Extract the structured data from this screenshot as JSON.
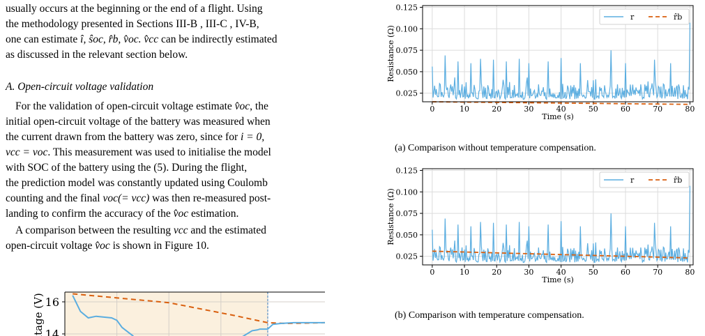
{
  "text": {
    "para1_l1": "usually occurs at the beginning or the end of a flight. Using",
    "para1_l2": "the methodology presented in Sections III-B , III-C , IV-B,",
    "para1_l3a": "one can estimate ",
    "para1_l3_vars": "î, ŝoc, r̂b, v̂oc. v̂cc",
    "para1_l3b": " can be indirectly estimated",
    "para1_l4": "as discussed in the relevant section below.",
    "section_heading": "A. Open-circuit voltage validation",
    "para2_l1a": "For the validation of open-circuit voltage estimate ",
    "para2_l1v": "v̂oc",
    "para2_l1b": ", the",
    "para2_l2": "initial open-circuit voltage of the battery was measured when",
    "para2_l3a": "the current drawn from the battery was zero, since for ",
    "para2_l3v": "i = 0,",
    "para2_l4a": "vcc = voc",
    "para2_l4b": ". This measurement was used to initialise the model",
    "para2_l5": "with SOC of the battery using the (5). During the flight,",
    "para2_l6": "the prediction model was constantly updated using Coulomb",
    "para2_l7a": "counting and the final ",
    "para2_l7v": "voc(= vcc)",
    "para2_l7b": " was then re-measured post-",
    "para2_l8a": "landing to confirm the accuracy of the ",
    "para2_l8v": "v̂oc",
    "para2_l8b": " estimation.",
    "para3_l1a": "A comparison between the resulting ",
    "para3_l1v": "vcc",
    "para3_l1b": " and the estimated",
    "para3_l2a": "open-circuit voltage ",
    "para3_l2v": "v̂oc",
    "para3_l2b": " is shown in Figure 10."
  },
  "captions": {
    "a": "(a) Comparison without temperature compensation.",
    "b": "(b) Comparison with temperature compensation."
  },
  "chart_data": [
    {
      "id": "fig_a",
      "type": "line",
      "ylabel": "Resistance (Ω)",
      "xlabel": "Time (s)",
      "xlim": [
        -3,
        81
      ],
      "ylim": [
        0.015,
        0.127
      ],
      "xticks": [
        "0",
        "10",
        "20",
        "30",
        "40",
        "50",
        "60",
        "70",
        "80"
      ],
      "yticks": [
        "0.025",
        "0.050",
        "0.075",
        "0.100",
        "0.125"
      ],
      "legend": {
        "position": "top-right",
        "entries": [
          "r",
          "r̂b"
        ]
      },
      "grid": true,
      "series": [
        {
          "name": "r",
          "color": "#5aade0",
          "style": "solid",
          "seed": 7,
          "base": 0.026,
          "noise": 0.009,
          "spikes": [
            [
              0,
              0.056
            ],
            [
              4,
              0.069
            ],
            [
              8,
              0.062
            ],
            [
              12,
              0.06
            ],
            [
              15,
              0.065
            ],
            [
              19,
              0.064
            ],
            [
              23,
              0.062
            ],
            [
              27,
              0.065
            ],
            [
              30,
              0.06
            ],
            [
              36,
              0.062
            ],
            [
              40,
              0.066
            ],
            [
              46,
              0.06
            ],
            [
              55.5,
              0.075
            ],
            [
              60,
              0.06
            ],
            [
              69,
              0.064
            ],
            [
              74,
              0.06
            ],
            [
              80,
              0.107
            ]
          ]
        },
        {
          "name": "r̂b",
          "color": "#d95f0e",
          "style": "dashed",
          "points": [
            [
              0,
              0.015
            ],
            [
              80,
              0.012
            ]
          ]
        }
      ]
    },
    {
      "id": "fig_b",
      "type": "line",
      "ylabel": "Resistance (Ω)",
      "xlabel": "Time (s)",
      "xlim": [
        -3,
        81
      ],
      "ylim": [
        0.015,
        0.127
      ],
      "xticks": [
        "0",
        "10",
        "20",
        "30",
        "40",
        "50",
        "60",
        "70",
        "80"
      ],
      "yticks": [
        "0.025",
        "0.050",
        "0.075",
        "0.100",
        "0.125"
      ],
      "legend": {
        "position": "top-right",
        "entries": [
          "r",
          "r̂b"
        ]
      },
      "grid": true,
      "series": [
        {
          "name": "r",
          "color": "#5aade0",
          "style": "solid",
          "seed": 7,
          "base": 0.026,
          "noise": 0.009,
          "spikes": [
            [
              0,
              0.056
            ],
            [
              4,
              0.069
            ],
            [
              8,
              0.062
            ],
            [
              12,
              0.06
            ],
            [
              15,
              0.065
            ],
            [
              19,
              0.064
            ],
            [
              23,
              0.062
            ],
            [
              27,
              0.065
            ],
            [
              30,
              0.06
            ],
            [
              36,
              0.062
            ],
            [
              40,
              0.066
            ],
            [
              46,
              0.06
            ],
            [
              55.5,
              0.075
            ],
            [
              60,
              0.06
            ],
            [
              69,
              0.064
            ],
            [
              74,
              0.06
            ],
            [
              80,
              0.107
            ]
          ]
        },
        {
          "name": "r̂b",
          "color": "#d95f0e",
          "style": "dashed",
          "points": [
            [
              0,
              0.031
            ],
            [
              80,
              0.023
            ]
          ]
        }
      ]
    },
    {
      "id": "fig_10_partial",
      "type": "line",
      "ylabel": "ltage (V)",
      "yticks": [
        "16",
        "14"
      ],
      "ylim": [
        13.4,
        16.8
      ],
      "xlim": [
        0,
        100
      ],
      "grid": true,
      "series": [
        {
          "name": "",
          "color": "#d95f0e",
          "style": "dashed",
          "points": [
            [
              3,
              16.5
            ],
            [
              40,
              15.95
            ],
            [
              65,
              15.15
            ],
            [
              78,
              14.7
            ],
            [
              85,
              14.65
            ],
            [
              100,
              14.7
            ]
          ]
        },
        {
          "name": "",
          "color": "#5aade0",
          "style": "solid",
          "points": [
            [
              3,
              16.4
            ],
            [
              6,
              15.4
            ],
            [
              9,
              15.0
            ],
            [
              12,
              15.1
            ],
            [
              18,
              15.0
            ],
            [
              20,
              14.85
            ],
            [
              22,
              14.4
            ],
            [
              26,
              13.9
            ],
            [
              28,
              13.6
            ]
          ]
        },
        {
          "name": "",
          "color": "#5aade0",
          "style": "solid",
          "points": [
            [
              66,
              13.6
            ],
            [
              72,
              14.2
            ],
            [
              74,
              14.25
            ],
            [
              75,
              14.3
            ],
            [
              78,
              14.3
            ],
            [
              80,
              14.6
            ],
            [
              83,
              14.65
            ],
            [
              88,
              14.7
            ],
            [
              100,
              14.7
            ]
          ]
        }
      ]
    }
  ]
}
